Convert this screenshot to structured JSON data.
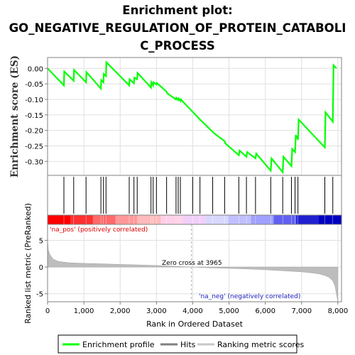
{
  "chart_data": {
    "type": "line",
    "title": "Enrichment plot:",
    "title_line2": "GO_NEGATIVE_REGULATION_OF_PROTEIN_CATABOLI",
    "title_line3": "C_PROCESS",
    "es_ylabel": "Enrichment score (ES)",
    "rank_ylabel": "Ranked list metric (PreRanked)",
    "xlabel": "Rank in Ordered Dataset",
    "xlim": [
      0,
      8100
    ],
    "es_ylim": [
      -0.345,
      0.035
    ],
    "rank_ylim": [
      -6.5,
      8
    ],
    "x_ticks": [
      {
        "value": 0,
        "label": "0"
      },
      {
        "value": 1000,
        "label": "1,000"
      },
      {
        "value": 2000,
        "label": "2,000"
      },
      {
        "value": 3000,
        "label": "3,000"
      },
      {
        "value": 4000,
        "label": "4,000"
      },
      {
        "value": 5000,
        "label": "5,000"
      },
      {
        "value": 6000,
        "label": "6,000"
      },
      {
        "value": 7000,
        "label": "7,000"
      },
      {
        "value": 8000,
        "label": "8,000"
      }
    ],
    "es_ticks": [
      {
        "value": 0.0,
        "label": "0.00"
      },
      {
        "value": -0.05,
        "label": "-0.05"
      },
      {
        "value": -0.1,
        "label": "-0.10"
      },
      {
        "value": -0.15,
        "label": "-0.15"
      },
      {
        "value": -0.2,
        "label": "-0.20"
      },
      {
        "value": -0.25,
        "label": "-0.25"
      },
      {
        "value": -0.3,
        "label": "-0.30"
      }
    ],
    "rank_ticks": [
      {
        "value": 5,
        "label": "5"
      },
      {
        "value": 0,
        "label": "0"
      },
      {
        "value": -5,
        "label": "-5"
      }
    ],
    "series": [
      {
        "name": "Enrichment profile",
        "color": "#00ff00",
        "x": [
          0,
          450,
          460,
          720,
          730,
          1060,
          1070,
          1470,
          1480,
          1540,
          1550,
          1610,
          1620,
          2250,
          2260,
          2380,
          2390,
          2470,
          2480,
          2850,
          2860,
          2910,
          2920,
          3000,
          3010,
          3280,
          3290,
          3540,
          3550,
          3600,
          3610,
          3660,
          3670,
          4200,
          4550,
          4600,
          4880,
          4900,
          5270,
          5290,
          5480,
          5500,
          5730,
          5750,
          6150,
          6170,
          6480,
          6500,
          6720,
          6740,
          6820,
          6840,
          6900,
          6920,
          7640,
          7660,
          7860,
          7880,
          7960
        ],
        "es": [
          0.0,
          -0.055,
          -0.01,
          -0.04,
          -0.005,
          -0.045,
          -0.012,
          -0.065,
          -0.038,
          -0.045,
          -0.018,
          -0.025,
          0.02,
          -0.055,
          -0.035,
          -0.048,
          -0.03,
          -0.035,
          -0.015,
          -0.062,
          -0.045,
          -0.055,
          -0.045,
          -0.052,
          -0.047,
          -0.075,
          -0.08,
          -0.1,
          -0.095,
          -0.102,
          -0.097,
          -0.105,
          -0.1,
          -0.165,
          -0.205,
          -0.21,
          -0.235,
          -0.242,
          -0.28,
          -0.265,
          -0.285,
          -0.27,
          -0.29,
          -0.275,
          -0.33,
          -0.29,
          -0.335,
          -0.285,
          -0.315,
          -0.26,
          -0.27,
          -0.215,
          -0.23,
          -0.165,
          -0.255,
          -0.142,
          -0.172,
          0.01,
          0.0
        ]
      },
      {
        "name": "Hits",
        "color": "#000000",
        "x": [
          450,
          720,
          1060,
          1470,
          1540,
          1610,
          2250,
          2380,
          2470,
          2850,
          2910,
          3000,
          3280,
          3540,
          3600,
          3660,
          4000,
          4200,
          4550,
          4880,
          5270,
          5480,
          5730,
          6150,
          6480,
          6720,
          6820,
          6900,
          7640,
          7860
        ]
      },
      {
        "name": "Ranking metric scores",
        "color": "#c0c0c0",
        "x": [
          0,
          5,
          20,
          60,
          150,
          300,
          600,
          1000,
          1500,
          2000,
          2500,
          3000,
          3500,
          3965,
          4500,
          5000,
          5500,
          6000,
          6500,
          7000,
          7300,
          7500,
          7650,
          7750,
          7850,
          7920,
          7960,
          8000
        ],
        "y": [
          6.5,
          4.5,
          3.2,
          2.4,
          1.5,
          1.05,
          0.8,
          0.7,
          0.6,
          0.5,
          0.4,
          0.3,
          0.15,
          0.0,
          -0.15,
          -0.25,
          -0.35,
          -0.5,
          -0.7,
          -0.9,
          -1.1,
          -1.3,
          -1.6,
          -1.9,
          -2.5,
          -3.5,
          -5.0,
          -6.5
        ]
      }
    ],
    "annotations": {
      "na_pos": "'na_pos' (positively correlated)",
      "na_neg": "'na_neg' (negatively correlated)",
      "zero_cross": "Zero cross at 3965",
      "zero_cross_x": 3965
    },
    "heat_colors": [
      "#ff0000",
      "#ff3030",
      "#ff6a6a",
      "#ff9999",
      "#ffbbbb",
      "#ffd0e8",
      "#f0d0f8",
      "#d8d8ff",
      "#c0c0ff",
      "#a0a0ff",
      "#6060f0",
      "#2020d0",
      "#0000c0"
    ],
    "legend": {
      "position": "bottom",
      "items": [
        {
          "label": "Enrichment profile",
          "color": "#00ff00",
          "style": "line"
        },
        {
          "label": "Hits",
          "color": "#808080",
          "style": "line"
        },
        {
          "label": "Ranking metric scores",
          "color": "#c8c8c8",
          "style": "line"
        }
      ]
    },
    "grid": true
  }
}
